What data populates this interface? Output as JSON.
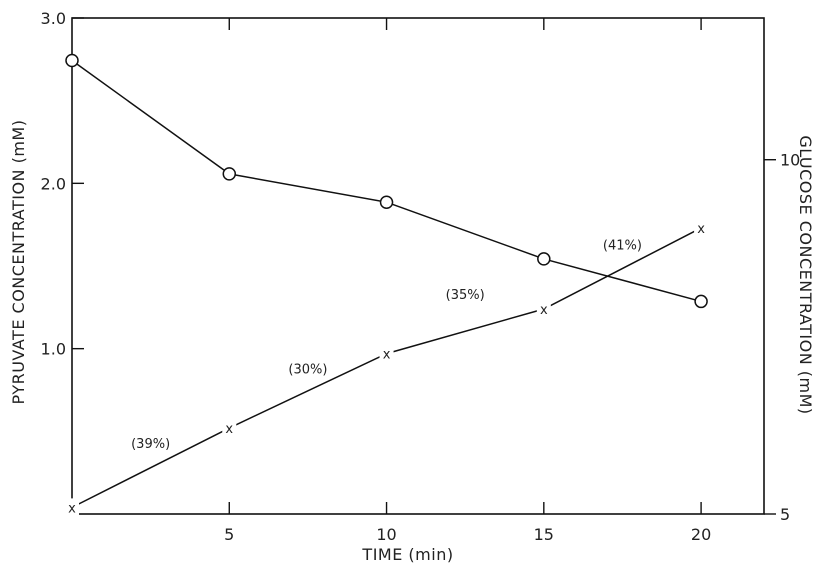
{
  "chart_data": {
    "type": "line",
    "title": "",
    "xlabel": "TIME (min)",
    "ylabel": "PYRUVATE CONCENTRATION (mM)",
    "y2label": "GLUCOSE CONCENTRATION (mM)",
    "xlim": [
      0,
      22
    ],
    "ylim": [
      0,
      3.0
    ],
    "y2lim": [
      5,
      12
    ],
    "x_ticks": [
      "5",
      "10",
      "15",
      "20"
    ],
    "x_tick_values": [
      5,
      10,
      15,
      20
    ],
    "y_ticks": [
      "1.0",
      "2.0",
      "3.0"
    ],
    "y_tick_values": [
      1.0,
      2.0,
      3.0
    ],
    "y2_ticks": [
      "5",
      "10"
    ],
    "y2_tick_values": [
      5,
      10
    ],
    "grid": false,
    "series": [
      {
        "axis": "right",
        "marker": "circle",
        "x": [
          0,
          5,
          10,
          15,
          20
        ],
        "y": [
          11.4,
          9.8,
          9.4,
          8.6,
          8.0
        ]
      },
      {
        "axis": "left",
        "marker": "x",
        "x": [
          0,
          5,
          10,
          15,
          20
        ],
        "y": [
          0.04,
          0.52,
          0.97,
          1.24,
          1.73
        ]
      }
    ],
    "annotations": [
      {
        "text": "(39%)",
        "x": 2.5,
        "y": 0.4
      },
      {
        "text": "(30%)",
        "x": 7.5,
        "y": 0.85
      },
      {
        "text": "(35%)",
        "x": 12.5,
        "y": 1.3
      },
      {
        "text": "(41%)",
        "x": 17.5,
        "y": 1.6
      }
    ]
  }
}
